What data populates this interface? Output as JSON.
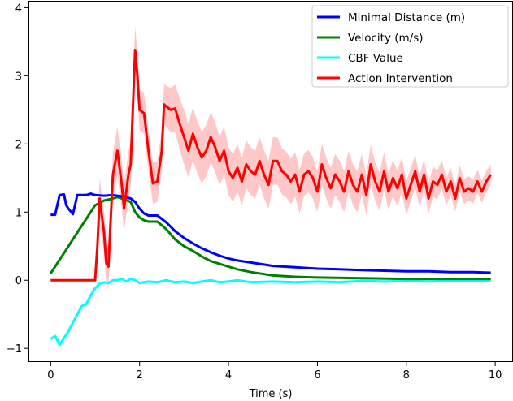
{
  "chart_data": {
    "type": "line",
    "title": "",
    "xlabel": "Time (s)",
    "ylabel": "",
    "xlim": [
      -0.5,
      10.4
    ],
    "ylim": [
      -1.2,
      4.1
    ],
    "x_ticks": [
      0,
      2,
      4,
      6,
      8,
      10
    ],
    "y_ticks": [
      -1,
      0,
      1,
      2,
      3,
      4
    ],
    "grid": false,
    "legend_position": "top-right",
    "series": [
      {
        "name": "Minimal Distance (m)",
        "color": "#0000ff",
        "points": [
          [
            0,
            0.96
          ],
          [
            0.1,
            0.96
          ],
          [
            0.2,
            1.25
          ],
          [
            0.3,
            1.26
          ],
          [
            0.35,
            1.1
          ],
          [
            0.4,
            1.05
          ],
          [
            0.5,
            0.97
          ],
          [
            0.6,
            1.25
          ],
          [
            0.8,
            1.25
          ],
          [
            0.9,
            1.27
          ],
          [
            1.0,
            1.25
          ],
          [
            1.2,
            1.24
          ],
          [
            1.4,
            1.25
          ],
          [
            1.6,
            1.23
          ],
          [
            1.8,
            1.2
          ],
          [
            1.9,
            1.15
          ],
          [
            2.0,
            1.05
          ],
          [
            2.1,
            0.98
          ],
          [
            2.2,
            0.95
          ],
          [
            2.4,
            0.95
          ],
          [
            2.6,
            0.85
          ],
          [
            2.8,
            0.72
          ],
          [
            3.0,
            0.62
          ],
          [
            3.2,
            0.54
          ],
          [
            3.4,
            0.47
          ],
          [
            3.6,
            0.41
          ],
          [
            3.8,
            0.36
          ],
          [
            4.0,
            0.32
          ],
          [
            4.2,
            0.29
          ],
          [
            4.5,
            0.26
          ],
          [
            4.8,
            0.23
          ],
          [
            5.0,
            0.21
          ],
          [
            5.5,
            0.19
          ],
          [
            6.0,
            0.17
          ],
          [
            6.5,
            0.16
          ],
          [
            7.0,
            0.15
          ],
          [
            7.5,
            0.14
          ],
          [
            8.0,
            0.13
          ],
          [
            8.5,
            0.13
          ],
          [
            9.0,
            0.12
          ],
          [
            9.5,
            0.12
          ],
          [
            9.9,
            0.11
          ]
        ]
      },
      {
        "name": "Velocity (m/s)",
        "color": "#008000",
        "points": [
          [
            0,
            0.1
          ],
          [
            0.2,
            0.3
          ],
          [
            0.4,
            0.5
          ],
          [
            0.6,
            0.7
          ],
          [
            0.8,
            0.9
          ],
          [
            1.0,
            1.1
          ],
          [
            1.2,
            1.17
          ],
          [
            1.4,
            1.2
          ],
          [
            1.5,
            1.22
          ],
          [
            1.6,
            1.2
          ],
          [
            1.8,
            1.15
          ],
          [
            1.9,
            1.0
          ],
          [
            2.0,
            0.92
          ],
          [
            2.1,
            0.88
          ],
          [
            2.2,
            0.86
          ],
          [
            2.4,
            0.86
          ],
          [
            2.6,
            0.75
          ],
          [
            2.8,
            0.6
          ],
          [
            3.0,
            0.5
          ],
          [
            3.2,
            0.43
          ],
          [
            3.4,
            0.35
          ],
          [
            3.6,
            0.28
          ],
          [
            3.8,
            0.24
          ],
          [
            4.0,
            0.2
          ],
          [
            4.2,
            0.16
          ],
          [
            4.5,
            0.12
          ],
          [
            4.8,
            0.09
          ],
          [
            5.0,
            0.07
          ],
          [
            5.5,
            0.05
          ],
          [
            6.0,
            0.04
          ],
          [
            7.0,
            0.03
          ],
          [
            8.0,
            0.02
          ],
          [
            9.0,
            0.02
          ],
          [
            9.9,
            0.02
          ]
        ]
      },
      {
        "name": "CBF Value",
        "color": "#00ffff",
        "points": [
          [
            0,
            -0.86
          ],
          [
            0.1,
            -0.82
          ],
          [
            0.15,
            -0.88
          ],
          [
            0.2,
            -0.95
          ],
          [
            0.3,
            -0.85
          ],
          [
            0.4,
            -0.75
          ],
          [
            0.5,
            -0.62
          ],
          [
            0.6,
            -0.5
          ],
          [
            0.7,
            -0.38
          ],
          [
            0.8,
            -0.35
          ],
          [
            0.9,
            -0.22
          ],
          [
            1.0,
            -0.12
          ],
          [
            1.1,
            -0.05
          ],
          [
            1.2,
            -0.03
          ],
          [
            1.3,
            -0.04
          ],
          [
            1.4,
            0.0
          ],
          [
            1.5,
            0.0
          ],
          [
            1.6,
            0.02
          ],
          [
            1.7,
            -0.02
          ],
          [
            1.8,
            0.02
          ],
          [
            1.9,
            0.0
          ],
          [
            2.0,
            -0.04
          ],
          [
            2.2,
            -0.02
          ],
          [
            2.4,
            -0.03
          ],
          [
            2.6,
            0.0
          ],
          [
            2.8,
            -0.03
          ],
          [
            3.0,
            -0.02
          ],
          [
            3.2,
            -0.04
          ],
          [
            3.4,
            -0.02
          ],
          [
            3.6,
            0.0
          ],
          [
            3.8,
            -0.03
          ],
          [
            4.0,
            -0.02
          ],
          [
            4.2,
            0.0
          ],
          [
            4.5,
            -0.03
          ],
          [
            5.0,
            -0.02
          ],
          [
            5.5,
            -0.03
          ],
          [
            6.0,
            -0.02
          ],
          [
            6.5,
            -0.03
          ],
          [
            7.0,
            -0.01
          ],
          [
            7.5,
            -0.02
          ],
          [
            8.0,
            -0.01
          ],
          [
            8.5,
            -0.02
          ],
          [
            9.0,
            -0.01
          ],
          [
            9.5,
            -0.01
          ],
          [
            9.9,
            -0.01
          ]
        ]
      },
      {
        "name": "Action Intervention",
        "color": "#ff0000",
        "band_color": "#ffb0b0",
        "points": [
          [
            0,
            0.0
          ],
          [
            0.5,
            0.0
          ],
          [
            1.0,
            0.0
          ],
          [
            1.05,
            0.5
          ],
          [
            1.1,
            1.2
          ],
          [
            1.2,
            0.7
          ],
          [
            1.25,
            0.25
          ],
          [
            1.3,
            0.2
          ],
          [
            1.35,
            0.9
          ],
          [
            1.4,
            1.55
          ],
          [
            1.5,
            1.9
          ],
          [
            1.6,
            1.4
          ],
          [
            1.65,
            1.05
          ],
          [
            1.7,
            1.3
          ],
          [
            1.75,
            1.55
          ],
          [
            1.8,
            1.7
          ],
          [
            1.85,
            2.55
          ],
          [
            1.9,
            3.38
          ],
          [
            1.95,
            3.0
          ],
          [
            2.0,
            2.5
          ],
          [
            2.1,
            2.45
          ],
          [
            2.2,
            1.9
          ],
          [
            2.3,
            1.42
          ],
          [
            2.4,
            1.45
          ],
          [
            2.5,
            1.9
          ],
          [
            2.55,
            2.58
          ],
          [
            2.6,
            2.55
          ],
          [
            2.7,
            2.5
          ],
          [
            2.8,
            2.52
          ],
          [
            2.9,
            2.3
          ],
          [
            3.0,
            2.1
          ],
          [
            3.1,
            1.9
          ],
          [
            3.2,
            2.15
          ],
          [
            3.3,
            1.95
          ],
          [
            3.4,
            1.8
          ],
          [
            3.5,
            1.9
          ],
          [
            3.6,
            2.1
          ],
          [
            3.7,
            1.95
          ],
          [
            3.8,
            1.75
          ],
          [
            3.9,
            1.9
          ],
          [
            4.0,
            1.6
          ],
          [
            4.1,
            1.5
          ],
          [
            4.2,
            1.65
          ],
          [
            4.3,
            1.45
          ],
          [
            4.4,
            1.7
          ],
          [
            4.5,
            1.6
          ],
          [
            4.6,
            1.55
          ],
          [
            4.7,
            1.75
          ],
          [
            4.8,
            1.55
          ],
          [
            4.9,
            1.4
          ],
          [
            5.0,
            1.75
          ],
          [
            5.1,
            1.75
          ],
          [
            5.2,
            1.6
          ],
          [
            5.3,
            1.55
          ],
          [
            5.4,
            1.45
          ],
          [
            5.5,
            1.55
          ],
          [
            5.6,
            1.3
          ],
          [
            5.7,
            1.55
          ],
          [
            5.8,
            1.6
          ],
          [
            5.9,
            1.5
          ],
          [
            6.0,
            1.3
          ],
          [
            6.1,
            1.7
          ],
          [
            6.2,
            1.5
          ],
          [
            6.3,
            1.35
          ],
          [
            6.4,
            1.55
          ],
          [
            6.5,
            1.45
          ],
          [
            6.6,
            1.3
          ],
          [
            6.7,
            1.6
          ],
          [
            6.8,
            1.4
          ],
          [
            6.9,
            1.3
          ],
          [
            7.0,
            1.55
          ],
          [
            7.1,
            1.25
          ],
          [
            7.2,
            1.7
          ],
          [
            7.3,
            1.45
          ],
          [
            7.4,
            1.3
          ],
          [
            7.5,
            1.6
          ],
          [
            7.6,
            1.3
          ],
          [
            7.7,
            1.5
          ],
          [
            7.8,
            1.35
          ],
          [
            7.9,
            1.55
          ],
          [
            8.0,
            1.2
          ],
          [
            8.1,
            1.4
          ],
          [
            8.2,
            1.6
          ],
          [
            8.3,
            1.3
          ],
          [
            8.4,
            1.55
          ],
          [
            8.5,
            1.2
          ],
          [
            8.6,
            1.45
          ],
          [
            8.7,
            1.4
          ],
          [
            8.8,
            1.55
          ],
          [
            8.9,
            1.3
          ],
          [
            9.0,
            1.45
          ],
          [
            9.1,
            1.2
          ],
          [
            9.2,
            1.5
          ],
          [
            9.3,
            1.3
          ],
          [
            9.4,
            1.35
          ],
          [
            9.5,
            1.3
          ],
          [
            9.6,
            1.45
          ],
          [
            9.7,
            1.3
          ],
          [
            9.8,
            1.45
          ],
          [
            9.9,
            1.55
          ]
        ],
        "band_halfwidth": [
          [
            0,
            0.0
          ],
          [
            1.0,
            0.0
          ],
          [
            1.1,
            0.3
          ],
          [
            1.3,
            0.3
          ],
          [
            1.5,
            0.35
          ],
          [
            1.9,
            0.35
          ],
          [
            2.0,
            0.3
          ],
          [
            2.4,
            0.3
          ],
          [
            2.6,
            0.3
          ],
          [
            3.0,
            0.4
          ],
          [
            4.0,
            0.35
          ],
          [
            5.0,
            0.35
          ],
          [
            6.0,
            0.3
          ],
          [
            7.0,
            0.3
          ],
          [
            8.0,
            0.25
          ],
          [
            9.0,
            0.2
          ],
          [
            9.9,
            0.15
          ]
        ]
      }
    ]
  }
}
